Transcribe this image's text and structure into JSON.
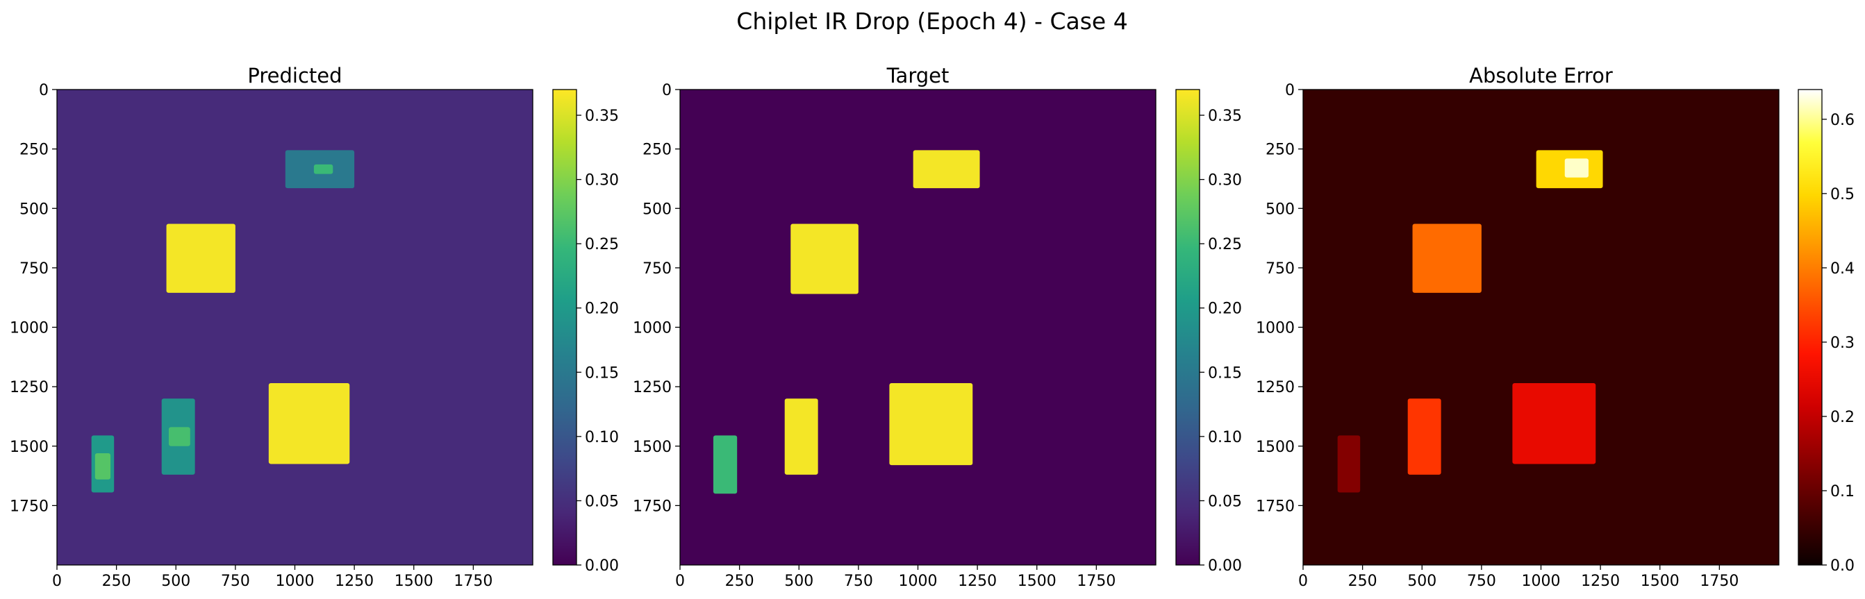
{
  "figure": {
    "suptitle": "Chiplet IR Drop (Epoch 4) - Case 4"
  },
  "chart_data": [
    {
      "type": "heatmap",
      "title": "Predicted",
      "colormap": "viridis",
      "xlim": [
        0,
        2000
      ],
      "ylim": [
        2000,
        0
      ],
      "x_ticks": [
        0,
        250,
        500,
        750,
        1000,
        1250,
        1500,
        1750
      ],
      "y_ticks": [
        0,
        250,
        500,
        750,
        1000,
        1250,
        1500,
        1750
      ],
      "background_value": 0.045,
      "regions": [
        {
          "x": [
            960,
            1250
          ],
          "y": [
            255,
            415
          ],
          "value": 0.15
        },
        {
          "x": [
            1080,
            1160
          ],
          "y": [
            315,
            355
          ],
          "value": 0.25
        },
        {
          "x": [
            460,
            750
          ],
          "y": [
            565,
            855
          ],
          "value": 0.365
        },
        {
          "x": [
            890,
            1230
          ],
          "y": [
            1235,
            1575
          ],
          "value": 0.365
        },
        {
          "x": [
            440,
            580
          ],
          "y": [
            1300,
            1620
          ],
          "value": 0.19
        },
        {
          "x": [
            470,
            560
          ],
          "y": [
            1420,
            1500
          ],
          "value": 0.26
        },
        {
          "x": [
            145,
            240
          ],
          "y": [
            1455,
            1695
          ],
          "value": 0.2
        },
        {
          "x": [
            160,
            225
          ],
          "y": [
            1530,
            1640
          ],
          "value": 0.27
        }
      ],
      "colorbar": {
        "min": 0.0,
        "max": 0.37,
        "ticks": [
          "0.00",
          "0.05",
          "0.10",
          "0.15",
          "0.20",
          "0.25",
          "0.30",
          "0.35"
        ]
      }
    },
    {
      "type": "heatmap",
      "title": "Target",
      "colormap": "viridis",
      "xlim": [
        0,
        2000
      ],
      "ylim": [
        2000,
        0
      ],
      "x_ticks": [
        0,
        250,
        500,
        750,
        1000,
        1250,
        1500,
        1750
      ],
      "y_ticks": [
        0,
        250,
        500,
        750,
        1000,
        1250,
        1500,
        1750
      ],
      "background_value": 0.0,
      "regions": [
        {
          "x": [
            980,
            1260
          ],
          "y": [
            255,
            415
          ],
          "value": 0.365
        },
        {
          "x": [
            465,
            750
          ],
          "y": [
            565,
            860
          ],
          "value": 0.365
        },
        {
          "x": [
            880,
            1230
          ],
          "y": [
            1235,
            1580
          ],
          "value": 0.365
        },
        {
          "x": [
            440,
            580
          ],
          "y": [
            1300,
            1620
          ],
          "value": 0.365
        },
        {
          "x": [
            140,
            240
          ],
          "y": [
            1455,
            1700
          ],
          "value": 0.25
        }
      ],
      "colorbar": {
        "min": 0.0,
        "max": 0.37,
        "ticks": [
          "0.00",
          "0.05",
          "0.10",
          "0.15",
          "0.20",
          "0.25",
          "0.30",
          "0.35"
        ]
      }
    },
    {
      "type": "heatmap",
      "title": "Absolute Error",
      "colormap": "hot",
      "xlim": [
        0,
        2000
      ],
      "ylim": [
        2000,
        0
      ],
      "x_ticks": [
        0,
        250,
        500,
        750,
        1000,
        1250,
        1500,
        1750
      ],
      "y_ticks": [
        0,
        250,
        500,
        750,
        1000,
        1250,
        1500,
        1750
      ],
      "background_value": 0.045,
      "regions": [
        {
          "x": [
            980,
            1260
          ],
          "y": [
            255,
            415
          ],
          "value": 0.5
        },
        {
          "x": [
            1100,
            1200
          ],
          "y": [
            290,
            370
          ],
          "value": 0.62
        },
        {
          "x": [
            460,
            750
          ],
          "y": [
            565,
            855
          ],
          "value": 0.38
        },
        {
          "x": [
            880,
            1230
          ],
          "y": [
            1235,
            1575
          ],
          "value": 0.25
        },
        {
          "x": [
            440,
            580
          ],
          "y": [
            1300,
            1620
          ],
          "value": 0.32
        },
        {
          "x": [
            145,
            240
          ],
          "y": [
            1455,
            1695
          ],
          "value": 0.13
        }
      ],
      "colorbar": {
        "min": 0.0,
        "max": 0.64,
        "ticks": [
          "0.0",
          "0.1",
          "0.2",
          "0.3",
          "0.4",
          "0.5",
          "0.6"
        ]
      }
    }
  ]
}
